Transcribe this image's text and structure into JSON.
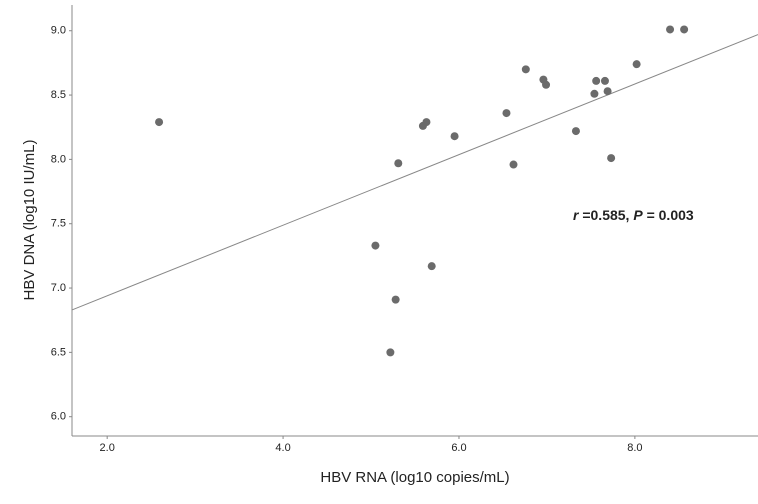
{
  "chart_data": {
    "type": "scatter",
    "x_label": "HBV RNA (log10 copies/mL)",
    "y_label": "HBV DNA (log10 IU/mL)",
    "annotation": [
      "r",
      " =0.585,  ",
      "P",
      " = 0.003"
    ],
    "color": "#6b6b6b",
    "grid": false,
    "xlim": [
      1.6,
      9.4
    ],
    "ylim": [
      5.85,
      9.2
    ],
    "xticks": [
      {
        "value": 2,
        "label": "2.0"
      },
      {
        "value": 4,
        "label": "4.0"
      },
      {
        "value": 6,
        "label": "6.0"
      },
      {
        "value": 8,
        "label": "8.0"
      }
    ],
    "yticks": [
      {
        "value": 6,
        "label": "6.0"
      },
      6.5,
      {
        "value": 7,
        "label": "7.0"
      },
      7.5,
      {
        "value": 8,
        "label": "8.0"
      },
      8.5,
      {
        "value": 9,
        "label": "9.0"
      }
    ],
    "x": [
      2.59,
      5.05,
      5.31,
      5.28,
      5.22,
      5.59,
      5.63,
      5.69,
      5.95,
      6.54,
      6.62,
      6.76,
      6.96,
      6.99,
      7.33,
      7.54,
      7.56,
      7.66,
      7.69,
      7.73,
      8.02,
      8.4,
      8.56
    ],
    "values": [
      8.29,
      7.33,
      7.97,
      6.91,
      6.5,
      8.26,
      8.29,
      7.17,
      8.18,
      8.36,
      7.96,
      8.7,
      8.62,
      8.58,
      8.22,
      8.51,
      8.61,
      8.61,
      8.53,
      8.01,
      8.74,
      9.01,
      9.01
    ],
    "fit_line": {
      "x": [
        1.6,
        9.4
      ],
      "y": [
        6.83,
        8.97
      ],
      "color": "#888888"
    }
  }
}
